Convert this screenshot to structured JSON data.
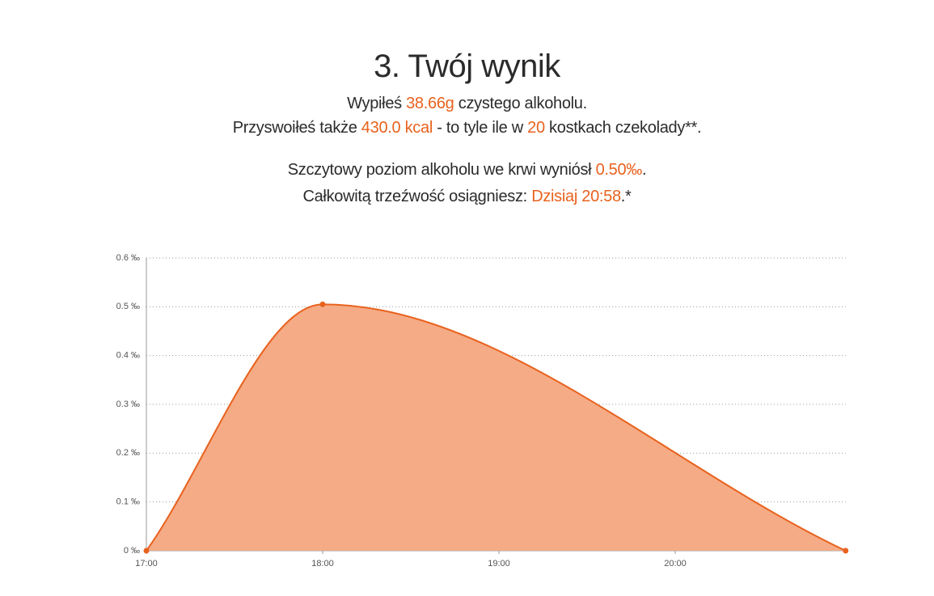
{
  "header": {
    "title": "3. Twój wynik"
  },
  "summary": {
    "lines": [
      [
        "Wypiłeś ",
        "38.66g",
        " czystego alkoholu."
      ],
      [
        "Przyswoiłeś także ",
        "430.0 kcal",
        " - to tyle ile w ",
        "20",
        " kostkach czekolady**."
      ],
      [
        "Szczytowy poziom alkoholu we krwi wyniósł ",
        "0.50‰",
        "."
      ],
      [
        "Całkowitą trzeźwość osiągniesz: ",
        "Dzisiaj 20:58",
        ".*"
      ]
    ]
  },
  "chart_data": {
    "type": "area",
    "x": [
      "17:00",
      "18:00",
      "20:58"
    ],
    "values": [
      0,
      0.505,
      0
    ],
    "color": "#e8621e",
    "fill": "#f5ab85",
    "xlim": [
      "17:00",
      "20:58"
    ],
    "xticks": [
      "17:00",
      "18:00",
      "19:00",
      "20:00"
    ],
    "ylim": [
      0,
      0.6
    ],
    "yticks": [
      {
        "value": 0,
        "label": "0 ‰"
      },
      {
        "value": 0.1,
        "label": "0.1 ‰"
      },
      {
        "value": 0.2,
        "label": "0.2 ‰"
      },
      {
        "value": 0.3,
        "label": "0.3 ‰"
      },
      {
        "value": 0.4,
        "label": "0.4 ‰"
      },
      {
        "value": 0.5,
        "label": "0.5 ‰"
      },
      {
        "value": 0.6,
        "label": "0.6 ‰"
      }
    ],
    "grid": true
  }
}
